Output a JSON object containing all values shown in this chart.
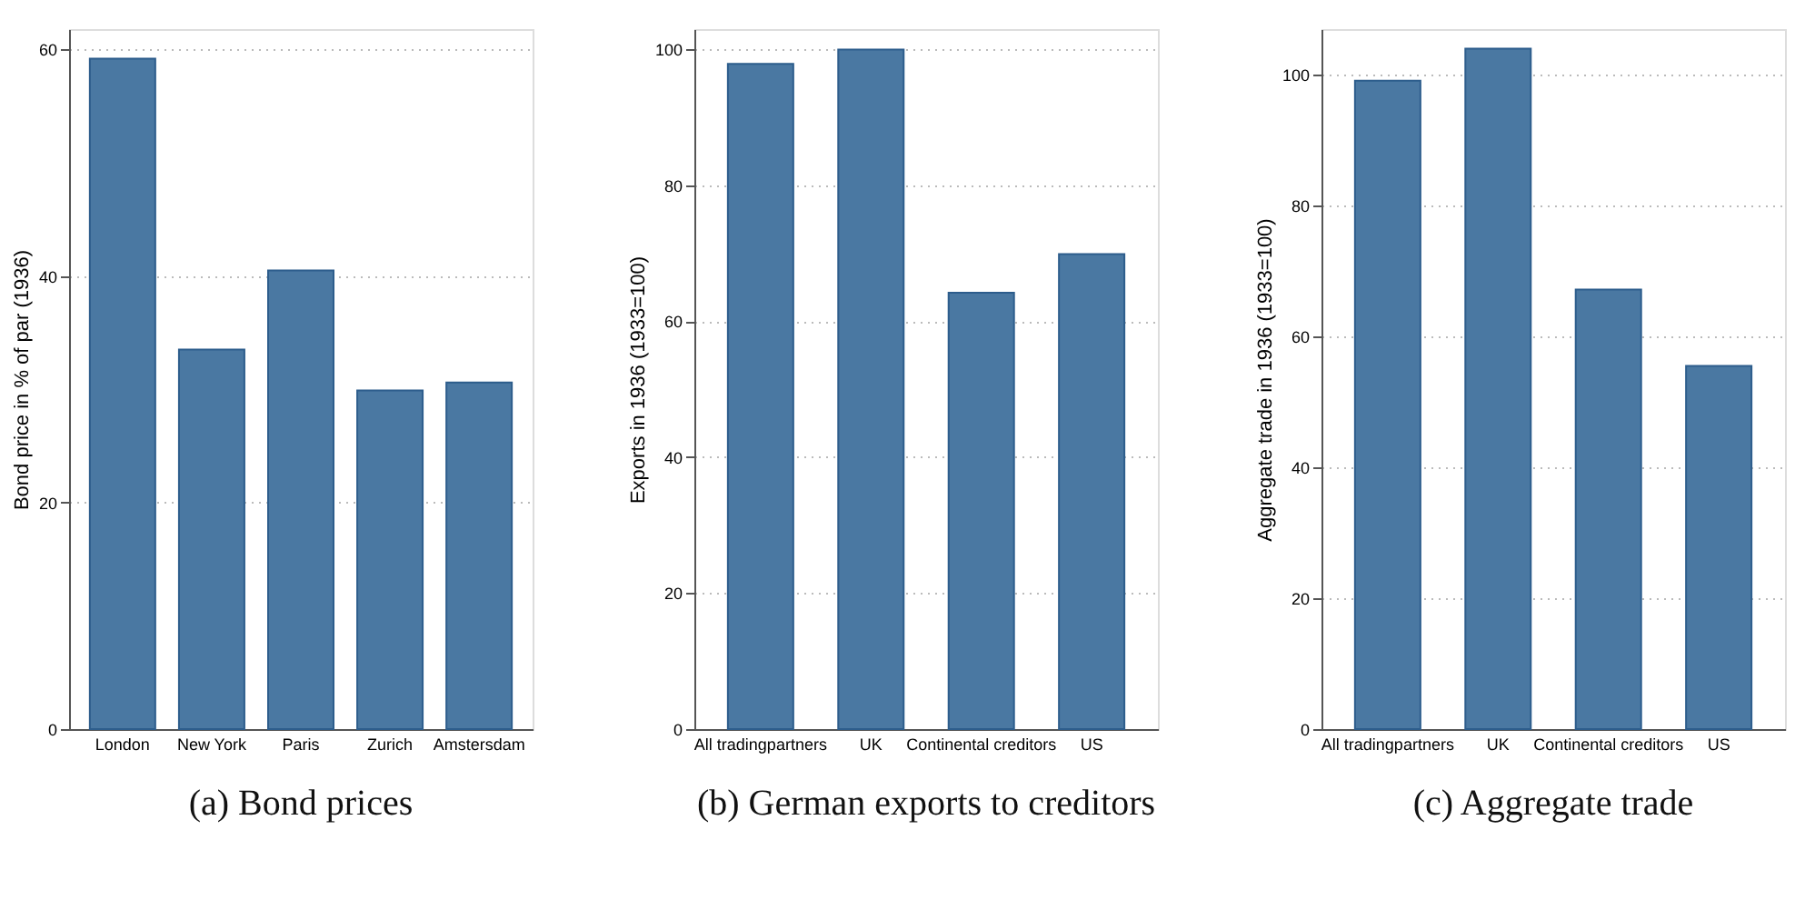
{
  "chart_data": [
    {
      "type": "bar",
      "title": "(a)  Bond prices",
      "ylabel": "Bond price in % of par (1936)",
      "categories": [
        "London",
        "New York",
        "Paris",
        "Zurich",
        "Amstersdam"
      ],
      "values": [
        59.2,
        33.5,
        40.5,
        29.9,
        30.6
      ],
      "color": "#4a78a2",
      "ylim": [
        0,
        61.8
      ],
      "yticks": [
        0,
        20,
        40,
        60
      ],
      "grid": "y"
    },
    {
      "type": "bar",
      "title": "(b)  German exports to creditors",
      "ylabel": "Exports in 1936 (1933=100)",
      "categories": [
        "All tradingpartners",
        "UK",
        "Continental creditors",
        "US"
      ],
      "values": [
        97.9,
        100,
        64.2,
        69.9
      ],
      "color": "#4a78a2",
      "ylim": [
        0,
        103
      ],
      "yticks": [
        0,
        20,
        40,
        60,
        80,
        100
      ],
      "grid": "y"
    },
    {
      "type": "bar",
      "title": "(c)  Aggregate trade",
      "ylabel": "Aggregate trade in 1936 (1933=100)",
      "categories": [
        "All tradingpartners",
        "UK",
        "Continental creditors",
        "US"
      ],
      "values": [
        99.1,
        104,
        67.2,
        55.5
      ],
      "color": "#4a78a2",
      "ylim": [
        0,
        107
      ],
      "yticks": [
        0,
        20,
        40,
        60,
        80,
        100
      ],
      "grid": "y"
    }
  ]
}
